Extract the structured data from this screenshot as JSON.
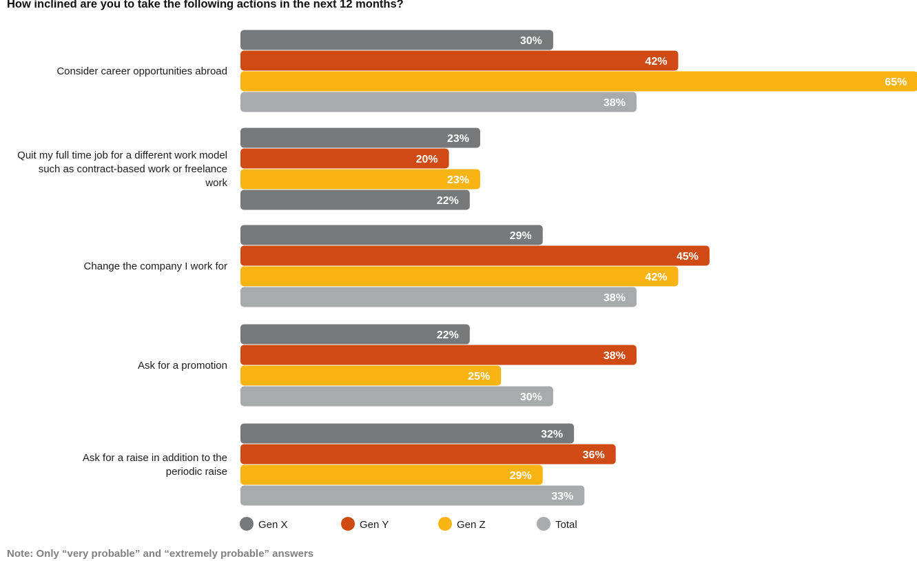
{
  "chart_data": {
    "type": "bar",
    "orientation": "horizontal",
    "title": "How inclined are you to take the following actions in the next 12 months?",
    "note": "Note: Only “very probable” and “extremely probable” answers",
    "categories": [
      [
        "Consider career opportunities abroad"
      ],
      [
        "Quit my full time job for a different work model",
        "such as contract-based work or freelance",
        "work"
      ],
      [
        "Change the company I work for"
      ],
      [
        "Ask for a promotion"
      ],
      [
        "Ask for a raise in addition to the",
        "periodic raise"
      ]
    ],
    "series": [
      {
        "name": "Gen X",
        "color": "#76787A",
        "values": [
          30,
          23,
          29,
          22,
          32
        ]
      },
      {
        "name": "Gen Y",
        "color": "#D04A14",
        "values": [
          42,
          20,
          45,
          38,
          36
        ]
      },
      {
        "name": "Gen Z",
        "color": "#F9B414",
        "values": [
          65,
          23,
          42,
          25,
          29
        ]
      },
      {
        "name": "Total",
        "color": "#A9AAAC",
        "values": [
          38,
          22,
          38,
          30,
          33
        ]
      }
    ],
    "bar_colors_override": [
      [
        null,
        null,
        null,
        null
      ],
      [
        null,
        null,
        null,
        "#76787A"
      ],
      [
        null,
        null,
        null,
        null
      ],
      [
        null,
        null,
        null,
        null
      ],
      [
        null,
        null,
        null,
        null
      ]
    ],
    "value_suffix": "%",
    "legend_position": "bottom-left",
    "grid": false
  }
}
